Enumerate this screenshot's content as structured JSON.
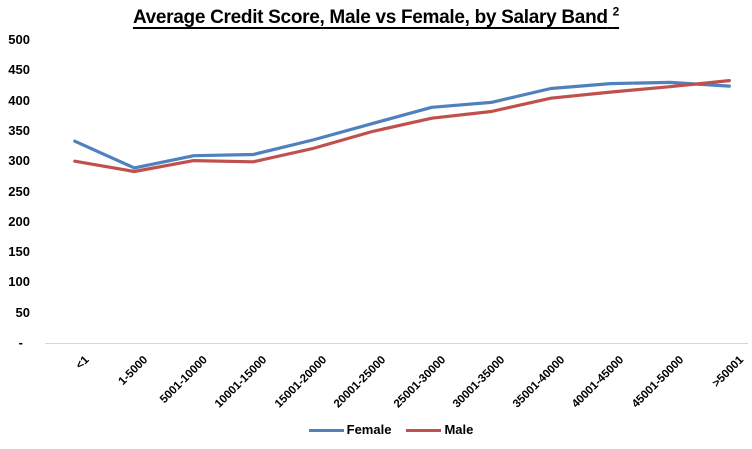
{
  "chart": {
    "title": "Average Credit Score, Male vs Female, by Salary Band",
    "title_superscript": "2"
  },
  "chart_data": {
    "type": "line",
    "title": "Average Credit Score, Male vs Female, by Salary Band ²",
    "xlabel": "",
    "ylabel": "",
    "categories": [
      "<1",
      "1-5000",
      "5001-10000",
      "10001-15000",
      "15001-20000",
      "20001-25000",
      "25001-30000",
      "30001-35000",
      "35001-40000",
      "40001-45000",
      "45001-50000",
      ">50001"
    ],
    "series": [
      {
        "name": "Female",
        "color": "#4F81BD",
        "values": [
          333,
          289,
          309,
          311,
          335,
          362,
          389,
          397,
          420,
          428,
          430,
          424
        ]
      },
      {
        "name": "Male",
        "color": "#C0504D",
        "values": [
          300,
          283,
          301,
          299,
          321,
          349,
          371,
          382,
          404,
          414,
          423,
          433
        ]
      }
    ],
    "ylim": [
      0,
      500
    ],
    "ytick_step": 50,
    "yticks": [
      {
        "value": 500,
        "label": "500"
      },
      {
        "value": 450,
        "label": "450"
      },
      {
        "value": 400,
        "label": "400"
      },
      {
        "value": 350,
        "label": "350"
      },
      {
        "value": 300,
        "label": "300"
      },
      {
        "value": 250,
        "label": "250"
      },
      {
        "value": 200,
        "label": "200"
      },
      {
        "value": 150,
        "label": "150"
      },
      {
        "value": 100,
        "label": "100"
      },
      {
        "value": 50,
        "label": "50"
      },
      {
        "value": 0,
        "label": "-"
      }
    ],
    "grid": false,
    "legend_position": "bottom",
    "axis_color": "#D6D6D6",
    "text_color": "#000000"
  }
}
